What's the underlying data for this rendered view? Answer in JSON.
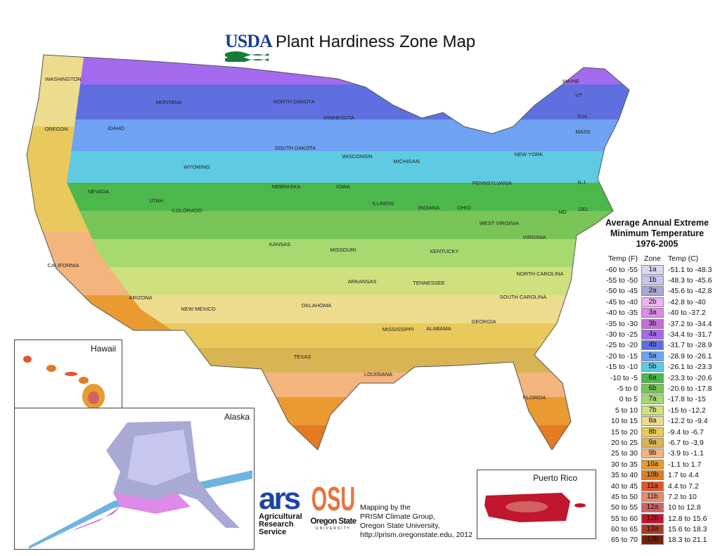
{
  "header": {
    "logo_text": "USDA",
    "title": "Plant Hardiness Zone Map"
  },
  "map": {
    "state_labels": [
      "WASHINGTON",
      "OREGON",
      "IDAHO",
      "MONTANA",
      "NORTH DAKOTA",
      "MINNESOTA",
      "SOUTH DAKOTA",
      "WISCONSIN",
      "WYOMING",
      "MICHIGAN",
      "NEBRASKA",
      "IOWA",
      "NEVADA",
      "UTAH",
      "COLORADO",
      "ILLINOIS",
      "INDIANA",
      "OHIO",
      "PENNSYLVANIA",
      "NEW YORK",
      "CALIFORNIA",
      "KANSAS",
      "MISSOURI",
      "KENTUCKY",
      "WEST VIRGINIA",
      "VIRGINIA",
      "ARIZONA",
      "NEW MEXICO",
      "OKLAHOMA",
      "ARKANSAS",
      "TENNESSEE",
      "NORTH CAROLINA",
      "SOUTH CAROLINA",
      "TEXAS",
      "MISSISSIPPI",
      "ALABAMA",
      "GEORGIA",
      "LOUISIANA",
      "FLORIDA",
      "MAINE",
      "VT",
      "N.H.",
      "MASS",
      "MD",
      "DEL",
      "N.J."
    ],
    "insets": {
      "hawaii": "Hawaii",
      "alaska": "Alaska",
      "puerto_rico": "Puerto Rico"
    }
  },
  "legend": {
    "title_lines": [
      "Average Annual Extreme",
      "Minimum Temperature",
      "1976-2005"
    ],
    "headers": {
      "f": "Temp (F)",
      "zone": "Zone",
      "c": "Temp (C)"
    },
    "rows": [
      {
        "f": "-60 to -55",
        "zone": "1a",
        "c": "-51.1 to -48.3",
        "color": "#d8d8f6"
      },
      {
        "f": "-55 to -50",
        "zone": "1b",
        "c": "-48.3 to -45.6",
        "color": "#c6c6ef"
      },
      {
        "f": "-50 to -45",
        "zone": "2a",
        "c": "-45.6 to -42.8",
        "color": "#a9a9d6"
      },
      {
        "f": "-45 to -40",
        "zone": "2b",
        "c": "-42.8 to -40",
        "color": "#ecb4ef"
      },
      {
        "f": "-40 to -35",
        "zone": "3a",
        "c": "-40 to -37.2",
        "color": "#de8ae8"
      },
      {
        "f": "-35 to -30",
        "zone": "3b",
        "c": "-37.2 to -34.4",
        "color": "#c46fd6"
      },
      {
        "f": "-30 to -25",
        "zone": "4a",
        "c": "-34.4 to -31.7",
        "color": "#a46aee"
      },
      {
        "f": "-25 to -20",
        "zone": "4b",
        "c": "-31.7 to -28.9",
        "color": "#5f6fe0"
      },
      {
        "f": "-20 to -15",
        "zone": "5a",
        "c": "-28.9 to -26.1",
        "color": "#6fa2f2"
      },
      {
        "f": "-15 to -10",
        "zone": "5b",
        "c": "-26.1 to -23.3",
        "color": "#5ecbe2"
      },
      {
        "f": "-10 to -5",
        "zone": "6a",
        "c": "-23.3 to -20.6",
        "color": "#4cb84c"
      },
      {
        "f": "-5 to 0",
        "zone": "6b",
        "c": "-20.6 to -17.8",
        "color": "#78c456"
      },
      {
        "f": "0 to 5",
        "zone": "7a",
        "c": "-17.8 to -15",
        "color": "#a6d970"
      },
      {
        "f": "5 to 10",
        "zone": "7b",
        "c": "-15 to -12.2",
        "color": "#d0e07e"
      },
      {
        "f": "10 to 15",
        "zone": "8a",
        "c": "-12.2 to -9.4",
        "color": "#eddc8e"
      },
      {
        "f": "15 to 20",
        "zone": "8b",
        "c": "-9.4 to -6.7",
        "color": "#e9c95c"
      },
      {
        "f": "20 to 25",
        "zone": "9a",
        "c": "-6.7 to -3.9",
        "color": "#d9b452"
      },
      {
        "f": "25 to 30",
        "zone": "9b",
        "c": "-3.9 to -1.1",
        "color": "#f3b47e"
      },
      {
        "f": "30 to 35",
        "zone": "10a",
        "c": "-1.1 to 1.7",
        "color": "#e99a30"
      },
      {
        "f": "35 to 40",
        "zone": "10b",
        "c": "1.7 to 4.4",
        "color": "#e27b22"
      },
      {
        "f": "40 to 45",
        "zone": "11a",
        "c": "4.4 to 7.2",
        "color": "#e0552a"
      },
      {
        "f": "45 to 50",
        "zone": "11b",
        "c": "7.2 to 10",
        "color": "#e78b70"
      },
      {
        "f": "50 to 55",
        "zone": "12a",
        "c": "10 to 12.8",
        "color": "#d06262"
      },
      {
        "f": "55 to 60",
        "zone": "12b",
        "c": "12.8 to 15.6",
        "color": "#c0162e"
      },
      {
        "f": "60 to 65",
        "zone": "13a",
        "c": "15.6 to 18.3",
        "color": "#a83a22"
      },
      {
        "f": "65 to 70",
        "zone": "13b",
        "c": "18.3 to 21.1",
        "color": "#7a1e0a"
      }
    ]
  },
  "credits": {
    "ars_logo": "ars",
    "ars_name": [
      "Agricultural",
      "Research",
      "Service"
    ],
    "osu_logo": "OSU",
    "osu_name": "Oregon State",
    "osu_sub": "UNIVERSITY",
    "lines": [
      "Mapping by the",
      "PRISM Climate Group,",
      "Oregon State University,",
      "http://prism.oregonstate.edu, 2012"
    ]
  }
}
